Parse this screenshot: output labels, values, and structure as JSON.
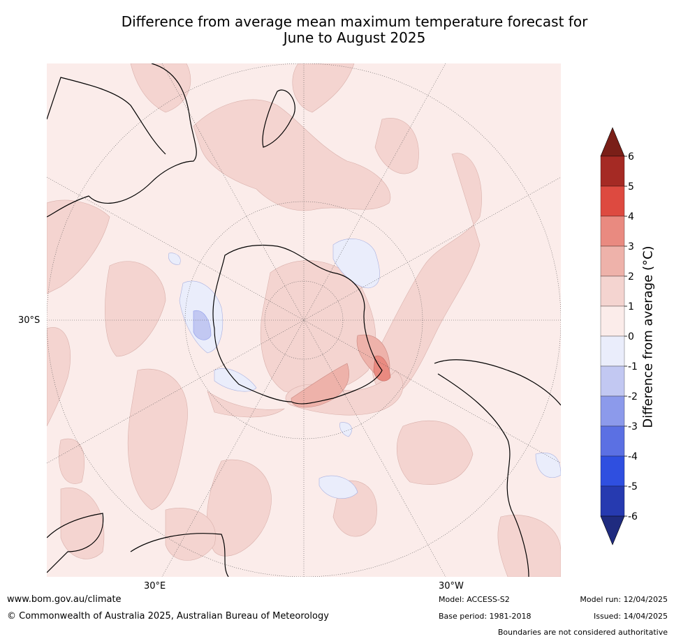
{
  "title_line1": "Difference from average mean maximum temperature forecast for",
  "title_line2": "June to August 2025",
  "latitude_label": "30°S",
  "longitude_labels": [
    "30°E",
    "30°W"
  ],
  "colorbar": {
    "label": "Difference from average (°C)",
    "ticks": [
      "6",
      "5",
      "4",
      "3",
      "2",
      "1",
      "0",
      "-1",
      "-2",
      "-3",
      "-4",
      "-5",
      "-6"
    ],
    "colors_top_to_bottom": [
      "#a52a24",
      "#dd4a40",
      "#e98a80",
      "#eeb2aa",
      "#f4d4d0",
      "#fbecea",
      "#eaedfb",
      "#c2c8f2",
      "#8c9aeb",
      "#5b70e3",
      "#2f4fe0",
      "#263ab0"
    ],
    "over_color": "#7a1f18",
    "under_color": "#1f2b7f"
  },
  "background_anomaly_color": "#fbecea",
  "footer": {
    "url": "www.bom.gov.au/climate",
    "copyright": "© Commonwealth of Australia 2025, Australian Bureau of Meteorology",
    "model": "Model: ACCESS-S2",
    "base_period": "Base period: 1981-2018",
    "model_run": "Model run: 12/04/2025",
    "issued": "Issued: 14/04/2025",
    "disclaimer": "Boundaries are not considered authoritative"
  }
}
